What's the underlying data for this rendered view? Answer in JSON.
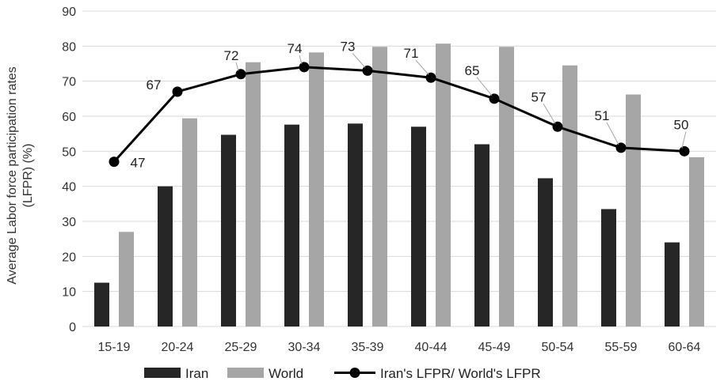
{
  "chart_data": {
    "type": "bar",
    "categories": [
      "15-19",
      "20-24",
      "25-29",
      "30-34",
      "35-39",
      "40-44",
      "45-49",
      "50-54",
      "55-59",
      "60-64"
    ],
    "series": [
      {
        "name": "Iran",
        "type": "bar",
        "color": "#262626",
        "values": [
          12.5,
          40,
          54.7,
          57.6,
          57.9,
          57,
          52,
          42.3,
          33.5,
          24
        ]
      },
      {
        "name": "World",
        "type": "bar",
        "color": "#a6a6a6",
        "values": [
          27,
          59.4,
          75.4,
          78.2,
          79.8,
          80.7,
          79.8,
          74.5,
          66.2,
          48.3
        ]
      },
      {
        "name": "Iran's LFPR/ World's LFPR",
        "type": "line",
        "color": "#000000",
        "values": [
          47,
          67,
          72,
          74,
          73,
          71,
          65,
          57,
          51,
          50
        ],
        "labels": [
          "47",
          "67",
          "72",
          "74",
          "73",
          "71",
          "65",
          "57",
          "51",
          "50"
        ]
      }
    ],
    "title": "",
    "xlabel": "",
    "ylabel_lines": [
      "Average Labor force participation rates",
      "(LFPR) (%)"
    ],
    "ylim": [
      0,
      90
    ],
    "yticks": [
      "0",
      "10",
      "20",
      "30",
      "40",
      "50",
      "60",
      "70",
      "80",
      "90"
    ],
    "grid": true,
    "legend_position": "bottom"
  }
}
